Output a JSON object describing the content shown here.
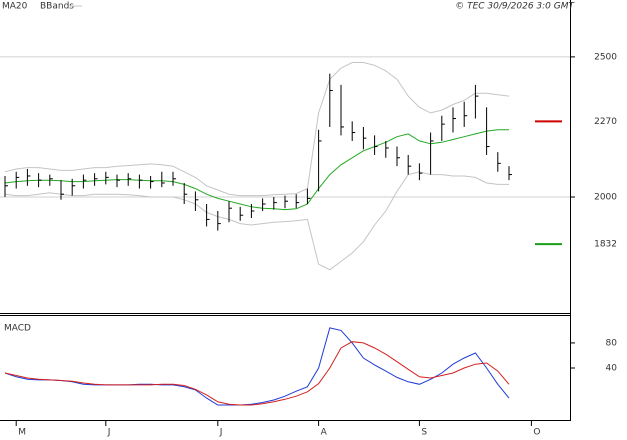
{
  "chart_data": [
    {
      "type": "ohlc",
      "annotation": "© TEC 30/9/2026 3:0 GMT",
      "categories": [
        null,
        "M",
        null,
        null,
        null,
        null,
        null,
        null,
        null,
        "J",
        null,
        null,
        null,
        null,
        null,
        null,
        null,
        null,
        null,
        "J",
        null,
        null,
        null,
        null,
        null,
        null,
        null,
        null,
        "A",
        null,
        null,
        null,
        null,
        null,
        null,
        null,
        null,
        "S",
        null,
        null,
        null,
        null,
        null,
        null,
        null,
        null,
        null,
        "O"
      ],
      "high": [
        2075,
        2090,
        2100,
        2085,
        2080,
        2060,
        2065,
        2080,
        2085,
        2090,
        2080,
        2085,
        2080,
        2075,
        2090,
        2090,
        2050,
        2020,
        1975,
        1950,
        1985,
        1965,
        1975,
        1995,
        2000,
        2005,
        2010,
        2030,
        2240,
        2440,
        2400,
        2270,
        2250,
        2220,
        2200,
        2180,
        2150,
        2120,
        2230,
        2290,
        2320,
        2340,
        2400,
        2320,
        2160,
        2110,
        null,
        null
      ],
      "low": [
        2000,
        2030,
        2040,
        2035,
        2040,
        1990,
        2005,
        2030,
        2040,
        2045,
        2035,
        2040,
        2030,
        2030,
        2035,
        2040,
        1975,
        1950,
        1895,
        1880,
        1910,
        1915,
        1925,
        1950,
        1955,
        1960,
        1960,
        1975,
        2020,
        2250,
        2220,
        2200,
        2170,
        2150,
        2140,
        2110,
        2080,
        2060,
        2080,
        2200,
        2230,
        2250,
        2280,
        2150,
        2090,
        2060,
        null,
        null
      ],
      "close": [
        2040,
        2070,
        2075,
        2060,
        2065,
        2010,
        2040,
        2060,
        2065,
        2070,
        2060,
        2065,
        2060,
        2055,
        2050,
        2065,
        2010,
        1990,
        1920,
        1905,
        1960,
        1935,
        1950,
        1975,
        1980,
        1985,
        1980,
        1995,
        2200,
        2380,
        2250,
        2230,
        2210,
        2180,
        2175,
        2140,
        2110,
        2085,
        2200,
        2260,
        2280,
        2290,
        2360,
        2180,
        2120,
        2080,
        null,
        null
      ],
      "bar_color": "#000000",
      "series": [
        {
          "name": "MA20",
          "color": "#22a822",
          "values": [
            2050,
            2055,
            2058,
            2060,
            2060,
            2058,
            2055,
            2055,
            2058,
            2060,
            2062,
            2062,
            2060,
            2058,
            2058,
            2055,
            2045,
            2030,
            2010,
            1995,
            1985,
            1975,
            1965,
            1960,
            1958,
            1955,
            1958,
            1975,
            2030,
            2080,
            2115,
            2140,
            2165,
            2180,
            2195,
            2215,
            2225,
            2200,
            2190,
            2195,
            2205,
            2215,
            2225,
            2235,
            2240,
            2240,
            null,
            null
          ]
        },
        {
          "name": "BBands",
          "color": "#c4c4c4",
          "upper": [
            2090,
            2100,
            2105,
            2105,
            2100,
            2095,
            2095,
            2100,
            2105,
            2105,
            2110,
            2112,
            2115,
            2118,
            2115,
            2110,
            2090,
            2070,
            2040,
            2025,
            2010,
            2005,
            2005,
            2005,
            2008,
            2010,
            2012,
            2030,
            2300,
            2420,
            2460,
            2480,
            2480,
            2470,
            2450,
            2420,
            2360,
            2320,
            2300,
            2310,
            2330,
            2345,
            2370,
            2370,
            2365,
            2360,
            null,
            null
          ],
          "lower": [
            2010,
            2005,
            2005,
            2010,
            2015,
            2010,
            2005,
            2005,
            2010,
            2010,
            2010,
            2008,
            2005,
            2000,
            2000,
            2000,
            1990,
            1975,
            1945,
            1930,
            1920,
            1905,
            1900,
            1905,
            1910,
            1912,
            1915,
            1920,
            1760,
            1740,
            1770,
            1800,
            1840,
            1900,
            1950,
            2020,
            2080,
            2090,
            2080,
            2080,
            2075,
            2075,
            2070,
            2050,
            2045,
            2045,
            null,
            null
          ]
        }
      ],
      "levels": [
        {
          "value": 2270,
          "color": "#cc0000"
        },
        {
          "value": 1832,
          "color": "#1a9e1a"
        }
      ],
      "ylim": [
        1586,
        2703
      ],
      "yticks": [
        2000,
        2500
      ],
      "grid": true
    },
    {
      "type": "line",
      "title": "MACD",
      "series": [
        {
          "color": "#1f3bd6",
          "values": [
            32,
            26,
            22,
            21,
            21,
            20,
            18,
            14,
            13,
            13,
            13,
            13,
            14,
            14,
            13,
            13,
            10,
            5,
            -8,
            -19,
            -19,
            -19,
            -18,
            -15,
            -11,
            -5,
            3,
            10,
            40,
            104,
            100,
            80,
            56,
            45,
            35,
            25,
            18,
            14,
            22,
            32,
            46,
            56,
            64,
            40,
            14,
            -8,
            null,
            null
          ]
        },
        {
          "color": "#d42020",
          "values": [
            32,
            28,
            24,
            22,
            21,
            20,
            19,
            16,
            14,
            13,
            13,
            13,
            13,
            13,
            14,
            14,
            12,
            6,
            -3,
            -14,
            -18,
            -19,
            -19,
            -17,
            -14,
            -10,
            -5,
            2,
            15,
            40,
            72,
            82,
            80,
            72,
            62,
            50,
            38,
            26,
            24,
            28,
            32,
            40,
            46,
            48,
            35,
            14,
            null,
            null
          ]
        }
      ],
      "ylim": [
        -43,
        123
      ],
      "yticks": [
        40,
        80
      ],
      "grid": false
    }
  ]
}
